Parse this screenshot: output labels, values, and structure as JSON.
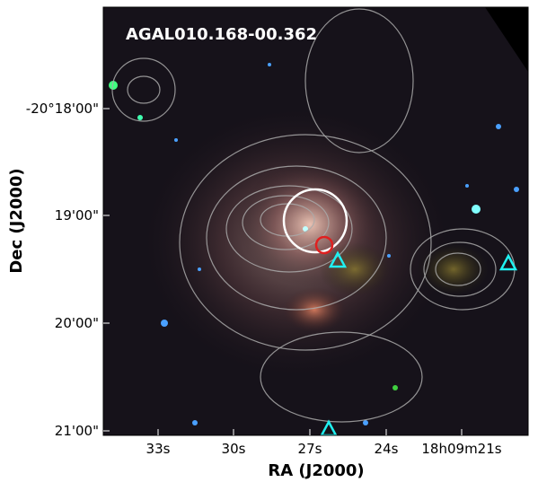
{
  "figure": {
    "title": "AGAL010.168-00.362",
    "xlabel": "RA (J2000)",
    "ylabel": "Dec (J2000)",
    "xticks": [
      "33s",
      "30s",
      "27s",
      "24s",
      "18h09m21s"
    ],
    "yticks": [
      "-20°18'00\"",
      "19'00\"",
      "20'00\"",
      "21'00\""
    ]
  }
}
